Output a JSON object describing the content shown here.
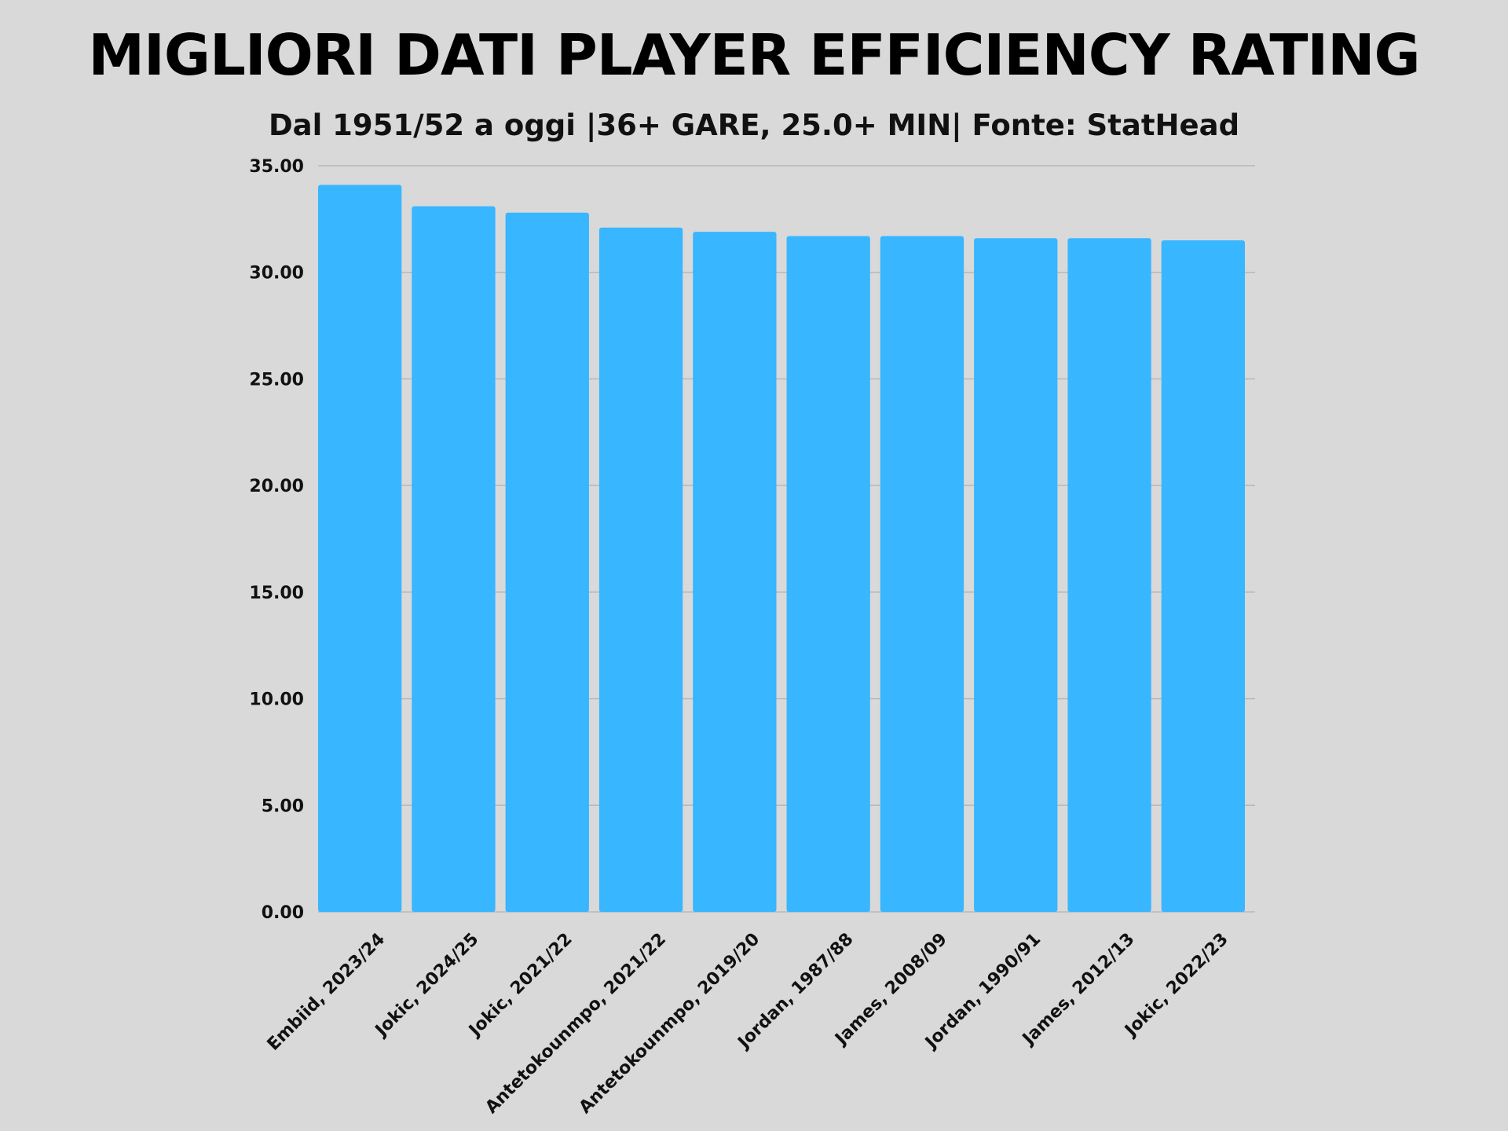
{
  "chart_data": {
    "type": "bar",
    "title": "MIGLIORI DATI PLAYER EFFICIENCY RATING",
    "subtitle": "Dal 1951/52 a oggi |36+ GARE, 25.0+ MIN| Fonte: StatHead",
    "xlabel": "",
    "ylabel": "",
    "categories": [
      "Embiid, 2023/24",
      "Jokic, 2024/25",
      "Jokic, 2021/22",
      "Antetokounmpo, 2021/22",
      "Antetokounmpo, 2019/20",
      "Jordan, 1987/88",
      "James, 2008/09",
      "Jordan, 1990/91",
      "James, 2012/13",
      "Jokic, 2022/23"
    ],
    "values": [
      34.1,
      33.1,
      32.8,
      32.1,
      31.9,
      31.7,
      31.7,
      31.6,
      31.6,
      31.5
    ],
    "ylim": [
      0,
      35
    ],
    "yticks": [
      "0.00",
      "5.00",
      "10.00",
      "15.00",
      "20.00",
      "25.00",
      "30.00",
      "35.00"
    ],
    "grid": true,
    "legend": "none",
    "colors": {
      "bar": "#38b6ff",
      "grid": "#b8b8b8",
      "background": "#d9d9d9"
    }
  }
}
